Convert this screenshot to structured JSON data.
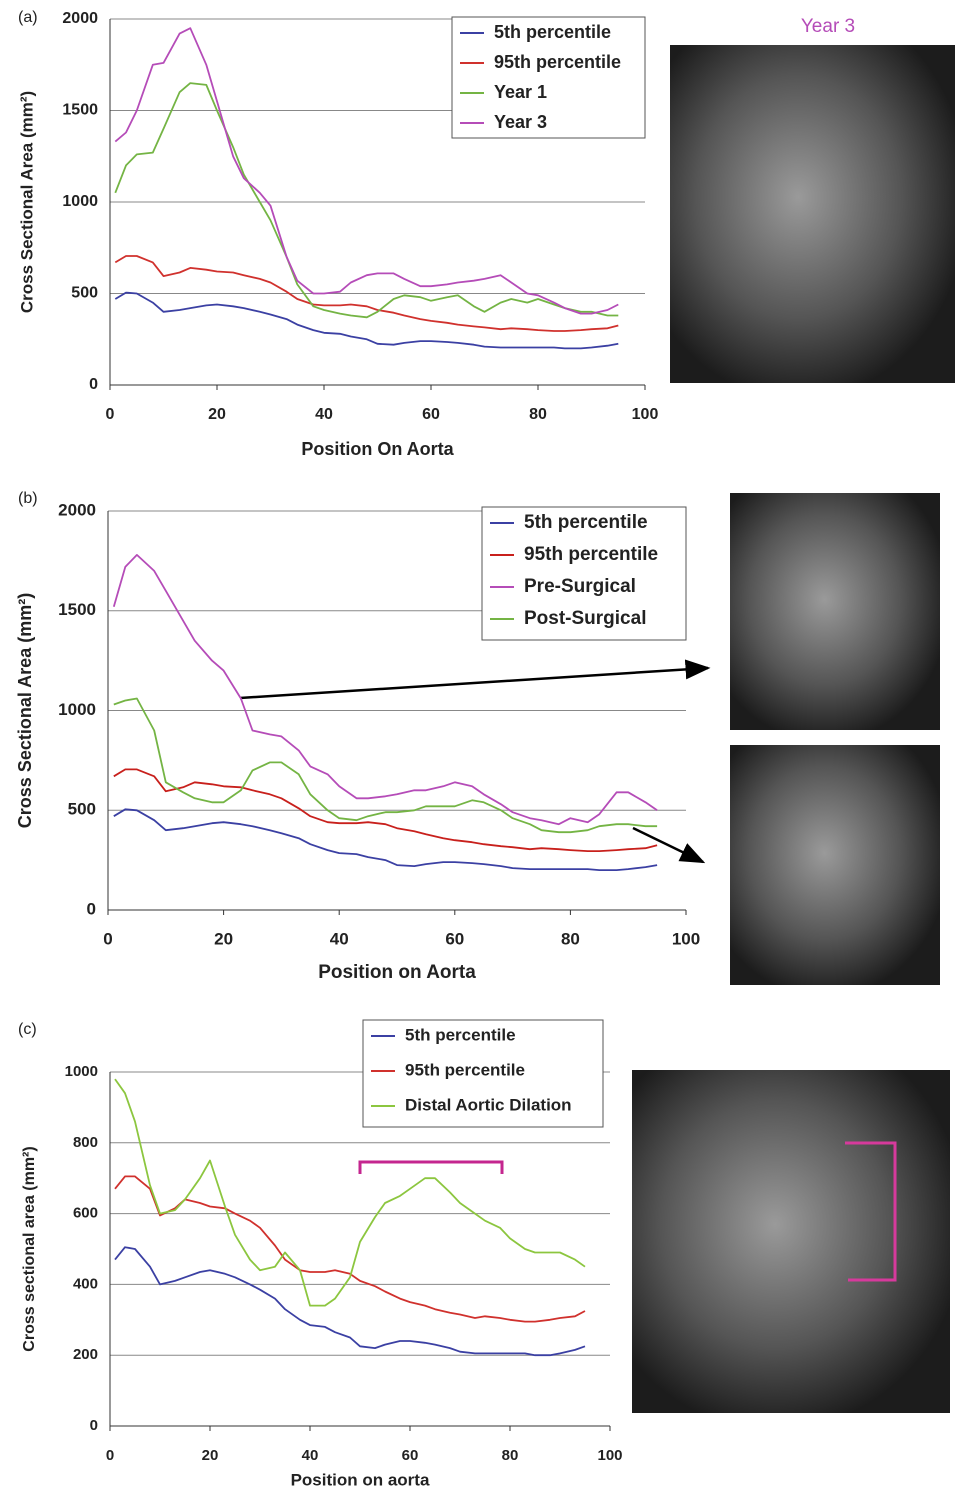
{
  "chart_data": [
    {
      "type": "line",
      "panel": "(a)",
      "image_label": "Year 3",
      "xlabel": "Position On Aorta",
      "ylabel": "Cross Sectional Area (mm²)",
      "xlim": [
        0,
        100
      ],
      "xticks": [
        0,
        20,
        40,
        60,
        80,
        100
      ],
      "ylim": [
        0,
        2000
      ],
      "yticks": [
        0,
        500,
        1000,
        1500,
        2000
      ],
      "grid": true,
      "x": [
        1,
        3,
        5,
        8,
        10,
        13,
        15,
        18,
        20,
        23,
        25,
        28,
        30,
        33,
        35,
        38,
        40,
        43,
        45,
        48,
        50,
        53,
        55,
        58,
        60,
        63,
        65,
        68,
        70,
        73,
        75,
        78,
        80,
        83,
        85,
        88,
        90,
        93,
        95
      ],
      "series": [
        {
          "name": "5th percentile",
          "color": "#3b40a3",
          "values": [
            470,
            505,
            500,
            450,
            400,
            410,
            420,
            435,
            440,
            430,
            420,
            400,
            385,
            360,
            330,
            300,
            285,
            280,
            265,
            250,
            225,
            220,
            230,
            240,
            240,
            235,
            230,
            220,
            210,
            205,
            205,
            205,
            205,
            205,
            200,
            200,
            205,
            215,
            225
          ]
        },
        {
          "name": "95th percentile",
          "color": "#d0312d",
          "values": [
            670,
            705,
            705,
            670,
            595,
            615,
            640,
            630,
            620,
            615,
            600,
            580,
            560,
            510,
            470,
            440,
            435,
            435,
            440,
            430,
            410,
            395,
            380,
            360,
            350,
            340,
            330,
            320,
            315,
            305,
            310,
            305,
            300,
            295,
            295,
            300,
            305,
            310,
            325
          ]
        },
        {
          "name": "Year 1",
          "color": "#74b444",
          "values": [
            1050,
            1200,
            1260,
            1270,
            1400,
            1600,
            1650,
            1640,
            1500,
            1300,
            1150,
            1000,
            900,
            700,
            550,
            430,
            410,
            390,
            380,
            370,
            400,
            470,
            490,
            480,
            460,
            480,
            490,
            430,
            400,
            450,
            470,
            450,
            470,
            440,
            420,
            400,
            400,
            380,
            380
          ]
        },
        {
          "name": "Year 3",
          "color": "#b54cb8",
          "values": [
            1330,
            1380,
            1500,
            1750,
            1760,
            1920,
            1950,
            1750,
            1550,
            1250,
            1130,
            1050,
            980,
            700,
            570,
            500,
            500,
            510,
            560,
            600,
            610,
            610,
            580,
            540,
            540,
            550,
            560,
            570,
            580,
            600,
            560,
            500,
            490,
            450,
            420,
            390,
            390,
            410,
            440
          ]
        }
      ]
    },
    {
      "type": "line",
      "panel": "(b)",
      "xlabel": "Position on Aorta",
      "ylabel": "Cross Sectional Area (mm²)",
      "xlim": [
        0,
        100
      ],
      "xticks": [
        0,
        20,
        40,
        60,
        80,
        100
      ],
      "ylim": [
        0,
        2000
      ],
      "yticks": [
        0,
        500,
        1000,
        1500,
        2000
      ],
      "grid": true,
      "x": [
        1,
        3,
        5,
        8,
        10,
        13,
        15,
        18,
        20,
        23,
        25,
        28,
        30,
        33,
        35,
        38,
        40,
        43,
        45,
        48,
        50,
        53,
        55,
        58,
        60,
        63,
        65,
        68,
        70,
        73,
        75,
        78,
        80,
        83,
        85,
        88,
        90,
        93,
        95
      ],
      "series": [
        {
          "name": "5th percentile",
          "color": "#3b40a3",
          "values": [
            470,
            505,
            500,
            450,
            400,
            410,
            420,
            435,
            440,
            430,
            420,
            400,
            385,
            360,
            330,
            300,
            285,
            280,
            265,
            250,
            225,
            220,
            230,
            240,
            240,
            235,
            230,
            220,
            210,
            205,
            205,
            205,
            205,
            205,
            200,
            200,
            205,
            215,
            225
          ]
        },
        {
          "name": "95th percentile",
          "color": "#c8201c",
          "values": [
            670,
            705,
            705,
            670,
            595,
            615,
            640,
            630,
            620,
            615,
            600,
            580,
            560,
            510,
            470,
            440,
            435,
            435,
            440,
            430,
            410,
            395,
            380,
            360,
            350,
            340,
            330,
            320,
            315,
            305,
            310,
            305,
            300,
            295,
            295,
            300,
            305,
            310,
            325
          ]
        },
        {
          "name": "Pre-Surgical",
          "color": "#b54cb8",
          "values": [
            1520,
            1720,
            1780,
            1700,
            1600,
            1450,
            1350,
            1250,
            1200,
            1060,
            900,
            880,
            870,
            800,
            720,
            680,
            620,
            560,
            560,
            570,
            580,
            600,
            600,
            620,
            640,
            620,
            580,
            530,
            490,
            460,
            450,
            430,
            460,
            440,
            480,
            590,
            590,
            540,
            500
          ]
        },
        {
          "name": "Post-Surgical",
          "color": "#74b444",
          "values": [
            1030,
            1050,
            1060,
            900,
            640,
            590,
            560,
            540,
            540,
            600,
            700,
            740,
            740,
            680,
            580,
            500,
            460,
            450,
            470,
            490,
            490,
            500,
            520,
            520,
            520,
            550,
            540,
            500,
            460,
            430,
            400,
            390,
            390,
            400,
            420,
            430,
            430,
            420,
            420
          ]
        }
      ]
    },
    {
      "type": "line",
      "panel": "(c)",
      "xlabel": "Position on aorta",
      "ylabel": "Cross sectional area (mm²)",
      "xlim": [
        0,
        100
      ],
      "xticks": [
        0,
        20,
        40,
        60,
        80,
        100
      ],
      "ylim": [
        0,
        1000
      ],
      "yticks": [
        0,
        200,
        400,
        600,
        800,
        1000
      ],
      "grid": true,
      "x": [
        1,
        3,
        5,
        8,
        10,
        13,
        15,
        18,
        20,
        23,
        25,
        28,
        30,
        33,
        35,
        38,
        40,
        43,
        45,
        48,
        50,
        53,
        55,
        58,
        60,
        63,
        65,
        68,
        70,
        73,
        75,
        78,
        80,
        83,
        85,
        88,
        90,
        93,
        95
      ],
      "series": [
        {
          "name": "5th percentile",
          "color": "#3b40a3",
          "values": [
            470,
            505,
            500,
            450,
            400,
            410,
            420,
            435,
            440,
            430,
            420,
            400,
            385,
            360,
            330,
            300,
            285,
            280,
            265,
            250,
            225,
            220,
            230,
            240,
            240,
            235,
            230,
            220,
            210,
            205,
            205,
            205,
            205,
            205,
            200,
            200,
            205,
            215,
            225
          ]
        },
        {
          "name": "95th percentile",
          "color": "#d0312d",
          "values": [
            670,
            705,
            705,
            670,
            595,
            615,
            640,
            630,
            620,
            615,
            600,
            580,
            560,
            510,
            470,
            440,
            435,
            435,
            440,
            430,
            410,
            395,
            380,
            360,
            350,
            340,
            330,
            320,
            315,
            305,
            310,
            305,
            300,
            295,
            295,
            300,
            305,
            310,
            325
          ]
        },
        {
          "name": "Distal Aortic Dilation",
          "color": "#8cc63f",
          "values": [
            980,
            940,
            860,
            680,
            600,
            610,
            640,
            700,
            750,
            620,
            540,
            470,
            440,
            450,
            490,
            440,
            340,
            340,
            360,
            420,
            520,
            590,
            630,
            650,
            670,
            700,
            700,
            660,
            630,
            600,
            580,
            560,
            530,
            500,
            490,
            490,
            490,
            470,
            450
          ]
        }
      ]
    }
  ]
}
